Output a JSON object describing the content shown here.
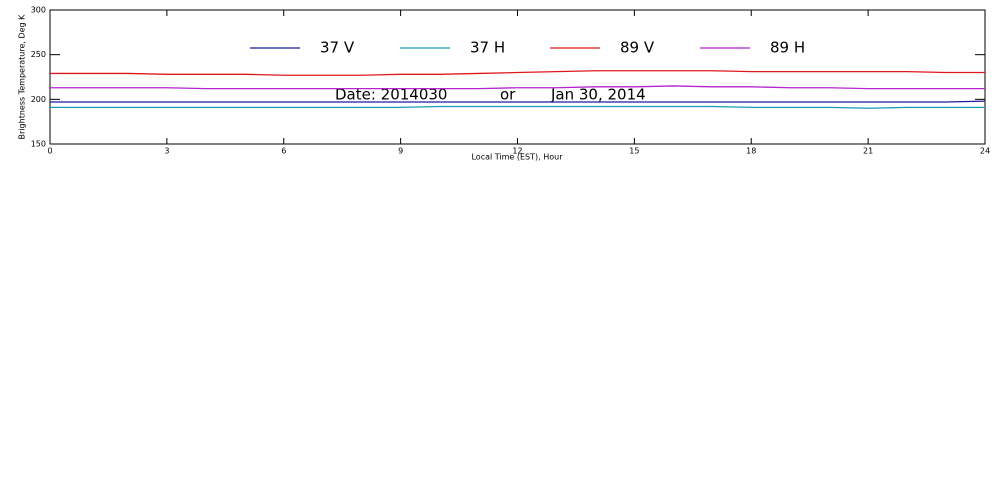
{
  "chart_data": {
    "type": "line",
    "x_label": "Local Time (EST), Hour",
    "y_label": "Brightness Temperature, Deg K",
    "annotations": [
      "Date: 2014030",
      "or",
      "Jan 30, 2014"
    ],
    "legend": "top",
    "x": [
      0,
      1,
      2,
      3,
      4,
      5,
      6,
      7,
      8,
      9,
      10,
      11,
      12,
      13,
      14,
      15,
      16,
      17,
      18,
      19,
      20,
      21,
      22,
      23,
      24
    ],
    "series": [
      {
        "name": "37 V",
        "color": "#1c1ca0",
        "values": [
          197,
          197,
          197,
          197,
          197,
          197,
          197,
          197,
          197,
          197,
          197,
          197,
          197,
          197,
          197,
          197,
          197,
          197,
          197,
          197,
          197,
          197,
          197,
          197,
          198
        ]
      },
      {
        "name": "37 H",
        "color": "#1a9cb4",
        "values": [
          191,
          191,
          191,
          191,
          191,
          191,
          191,
          191,
          191,
          191,
          192,
          192,
          192,
          192,
          192,
          192,
          192,
          192,
          191,
          191,
          191,
          190,
          191,
          191,
          191
        ]
      },
      {
        "name": "89 V",
        "color": "#e0181c",
        "values": [
          229,
          229,
          229,
          228,
          228,
          228,
          227,
          227,
          227,
          228,
          228,
          229,
          230,
          231,
          232,
          232,
          232,
          232,
          231,
          231,
          231,
          231,
          231,
          230,
          230
        ]
      },
      {
        "name": "89 H",
        "color": "#b424d0",
        "values": [
          213,
          213,
          213,
          213,
          212,
          212,
          212,
          212,
          212,
          212,
          212,
          212,
          213,
          213,
          214,
          214,
          215,
          214,
          214,
          213,
          213,
          212,
          212,
          212,
          212
        ]
      }
    ],
    "xlim": [
      0,
      24
    ],
    "xticks": [
      0,
      3,
      6,
      9,
      12,
      15,
      18,
      21,
      24
    ],
    "ylim": [
      150,
      300
    ],
    "yticks": [
      150,
      200,
      250,
      300
    ]
  }
}
